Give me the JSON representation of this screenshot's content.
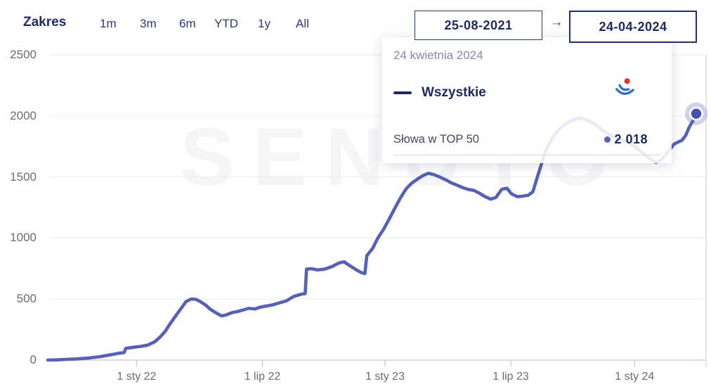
{
  "header": {
    "range_label": "Zakres",
    "range_buttons": [
      "1m",
      "3m",
      "6m",
      "YTD",
      "1y",
      "All"
    ],
    "date_from": "25-08-2021",
    "date_to": "24-04-2024",
    "arrow": "→"
  },
  "watermark": "SENUTO",
  "tooltip": {
    "date": "24 kwietnia 2024",
    "series_name": "Wszystkie",
    "metric_label": "Słowa w TOP 50",
    "value": "2 018",
    "brand_icon": "senuto-logo-icon"
  },
  "colors": {
    "line": "#5661b6",
    "marker_core": "#4652b2",
    "marker_halo": "rgba(95,105,190,0.3)",
    "grid": "#eeeef2",
    "axis": "#ccd3e4",
    "tick": "#c4cbdc",
    "axis_text": "#6d6d6d",
    "navy": "#1c2963",
    "brand_red": "#e5352c",
    "brand_blue": "#2f6fbd"
  },
  "chart_data": {
    "type": "line",
    "title": "",
    "xlabel": "",
    "ylabel": "",
    "ylim": [
      0,
      2500
    ],
    "y_ticks": [
      0,
      500,
      1000,
      1500,
      2000,
      2500
    ],
    "x_ticks": [
      {
        "label": "1 sty 22",
        "t": 0.137
      },
      {
        "label": "1 lip 22",
        "t": 0.331
      },
      {
        "label": "1 sty 23",
        "t": 0.52
      },
      {
        "label": "1 lip 23",
        "t": 0.714
      },
      {
        "label": "1 sty 24",
        "t": 0.905
      }
    ],
    "x_range_dates": [
      "25-08-2021",
      "24-04-2024"
    ],
    "grid": "horizontal",
    "legend_position": "tooltip",
    "series": [
      {
        "name": "Wszystkie",
        "metric": "Słowa w TOP 50",
        "color": "#5661b6",
        "end_marker": {
          "t": 1.0,
          "value": 2018,
          "label": "2 018"
        },
        "points": [
          [
            0.0,
            0
          ],
          [
            0.013,
            2
          ],
          [
            0.029,
            6
          ],
          [
            0.046,
            10
          ],
          [
            0.062,
            16
          ],
          [
            0.078,
            26
          ],
          [
            0.089,
            36
          ],
          [
            0.1,
            46
          ],
          [
            0.11,
            56
          ],
          [
            0.118,
            62
          ],
          [
            0.12,
            95
          ],
          [
            0.132,
            105
          ],
          [
            0.143,
            112
          ],
          [
            0.154,
            122
          ],
          [
            0.165,
            150
          ],
          [
            0.173,
            188
          ],
          [
            0.181,
            235
          ],
          [
            0.188,
            292
          ],
          [
            0.197,
            360
          ],
          [
            0.206,
            425
          ],
          [
            0.213,
            478
          ],
          [
            0.221,
            500
          ],
          [
            0.228,
            498
          ],
          [
            0.235,
            480
          ],
          [
            0.243,
            452
          ],
          [
            0.251,
            415
          ],
          [
            0.26,
            385
          ],
          [
            0.268,
            362
          ],
          [
            0.275,
            370
          ],
          [
            0.284,
            388
          ],
          [
            0.293,
            398
          ],
          [
            0.301,
            410
          ],
          [
            0.31,
            424
          ],
          [
            0.319,
            418
          ],
          [
            0.327,
            432
          ],
          [
            0.336,
            442
          ],
          [
            0.347,
            452
          ],
          [
            0.358,
            470
          ],
          [
            0.368,
            485
          ],
          [
            0.379,
            520
          ],
          [
            0.39,
            538
          ],
          [
            0.397,
            545
          ],
          [
            0.399,
            745
          ],
          [
            0.407,
            748
          ],
          [
            0.416,
            738
          ],
          [
            0.427,
            745
          ],
          [
            0.438,
            765
          ],
          [
            0.449,
            795
          ],
          [
            0.457,
            805
          ],
          [
            0.466,
            772
          ],
          [
            0.475,
            742
          ],
          [
            0.483,
            718
          ],
          [
            0.489,
            708
          ],
          [
            0.492,
            855
          ],
          [
            0.501,
            915
          ],
          [
            0.509,
            1000
          ],
          [
            0.518,
            1072
          ],
          [
            0.527,
            1160
          ],
          [
            0.535,
            1242
          ],
          [
            0.544,
            1330
          ],
          [
            0.553,
            1405
          ],
          [
            0.561,
            1448
          ],
          [
            0.57,
            1482
          ],
          [
            0.579,
            1512
          ],
          [
            0.587,
            1530
          ],
          [
            0.596,
            1518
          ],
          [
            0.605,
            1498
          ],
          [
            0.613,
            1478
          ],
          [
            0.622,
            1452
          ],
          [
            0.631,
            1433
          ],
          [
            0.639,
            1414
          ],
          [
            0.648,
            1398
          ],
          [
            0.657,
            1390
          ],
          [
            0.665,
            1368
          ],
          [
            0.674,
            1340
          ],
          [
            0.683,
            1318
          ],
          [
            0.691,
            1332
          ],
          [
            0.7,
            1398
          ],
          [
            0.708,
            1408
          ],
          [
            0.715,
            1362
          ],
          [
            0.724,
            1338
          ],
          [
            0.732,
            1342
          ],
          [
            0.741,
            1350
          ],
          [
            0.748,
            1378
          ],
          [
            0.754,
            1482
          ],
          [
            0.761,
            1600
          ],
          [
            0.767,
            1705
          ],
          [
            0.776,
            1800
          ],
          [
            0.784,
            1862
          ],
          [
            0.793,
            1912
          ],
          [
            0.804,
            1952
          ],
          [
            0.815,
            1976
          ],
          [
            0.823,
            1984
          ],
          [
            0.834,
            1960
          ],
          [
            0.845,
            1928
          ],
          [
            0.856,
            1880
          ],
          [
            0.867,
            1843
          ],
          [
            0.878,
            1816
          ],
          [
            0.888,
            1798
          ],
          [
            0.897,
            1778
          ],
          [
            0.906,
            1748
          ],
          [
            0.914,
            1710
          ],
          [
            0.923,
            1670
          ],
          [
            0.932,
            1636
          ],
          [
            0.938,
            1620
          ],
          [
            0.946,
            1640
          ],
          [
            0.953,
            1682
          ],
          [
            0.96,
            1730
          ],
          [
            0.966,
            1770
          ],
          [
            0.973,
            1788
          ],
          [
            0.978,
            1800
          ],
          [
            0.984,
            1842
          ],
          [
            0.989,
            1905
          ],
          [
            0.995,
            1962
          ],
          [
            1.0,
            2018
          ]
        ]
      }
    ]
  }
}
